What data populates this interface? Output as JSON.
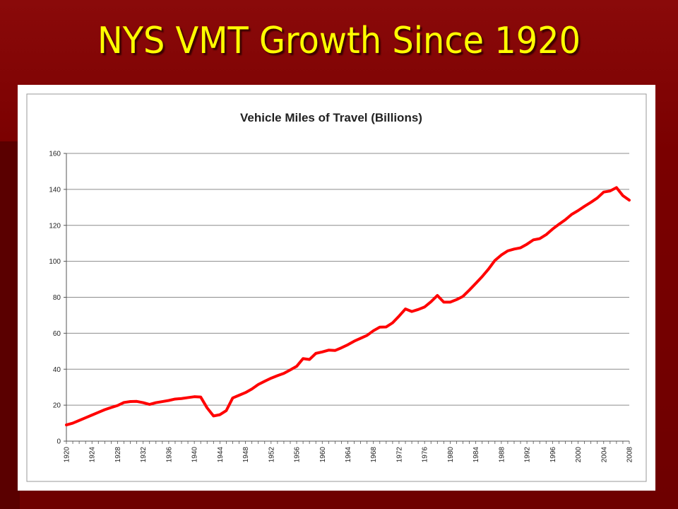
{
  "slide": {
    "title": "NYS VMT Growth Since 1920",
    "title_color": "#ffff00",
    "background_color": "#7a0000"
  },
  "chart_data": {
    "type": "line",
    "title": "Vehicle Miles of Travel (Billions)",
    "xlabel": "",
    "ylabel": "",
    "ylim": [
      0,
      160
    ],
    "yticks": [
      0,
      20,
      40,
      60,
      80,
      100,
      120,
      140,
      160
    ],
    "xlim": [
      1920,
      2008
    ],
    "xticks": [
      1920,
      1924,
      1928,
      1932,
      1936,
      1940,
      1944,
      1948,
      1952,
      1956,
      1960,
      1964,
      1968,
      1972,
      1976,
      1980,
      1984,
      1988,
      1992,
      1996,
      2000,
      2004,
      2008
    ],
    "grid": "horizontal",
    "legend": "none",
    "line_color": "#ff0000",
    "series": [
      {
        "x": [
          1920,
          1921,
          1922,
          1923,
          1924,
          1925,
          1926,
          1927,
          1928,
          1929,
          1930,
          1931,
          1932,
          1933,
          1934,
          1935,
          1936,
          1937,
          1938,
          1939,
          1940,
          1941,
          1942,
          1943,
          1944,
          1945,
          1946,
          1947,
          1948,
          1949,
          1950,
          1951,
          1952,
          1953,
          1954,
          1955,
          1956,
          1957,
          1958,
          1959,
          1960,
          1961,
          1962,
          1963,
          1964,
          1965,
          1966,
          1967,
          1968,
          1969,
          1970,
          1971,
          1972,
          1973,
          1974,
          1975,
          1976,
          1977,
          1978,
          1979,
          1980,
          1981,
          1982,
          1983,
          1984,
          1985,
          1986,
          1987,
          1988,
          1989,
          1990,
          1991,
          1992,
          1993,
          1994,
          1995,
          1996,
          1997,
          1998,
          1999,
          2000,
          2001,
          2002,
          2003,
          2004,
          2005,
          2006,
          2007,
          2008
        ],
        "values": [
          9,
          10,
          11.5,
          13,
          14.5,
          16,
          17.5,
          18.7,
          19.8,
          21.5,
          22,
          22.1,
          21.4,
          20.4,
          21.4,
          22,
          22.6,
          23.4,
          23.7,
          24.2,
          24.7,
          24.5,
          18.5,
          14,
          14.7,
          17,
          24,
          25.5,
          27,
          29,
          31.5,
          33.3,
          35,
          36.4,
          37.7,
          39.6,
          41.6,
          45.9,
          45.4,
          48.8,
          49.6,
          50.6,
          50.4,
          51.9,
          53.6,
          55.6,
          57.2,
          58.8,
          61.4,
          63.4,
          63.5,
          65.8,
          69.5,
          73.5,
          72.1,
          73.2,
          74.6,
          77.5,
          81,
          77.3,
          77.3,
          78.7,
          80.5,
          84,
          87.7,
          91.5,
          95.7,
          100.5,
          103.5,
          105.8,
          106.8,
          107.5,
          109.5,
          111.9,
          112.6,
          114.8,
          117.9,
          120.6,
          123.1,
          126.1,
          128.2,
          130.6,
          132.8,
          135.2,
          138.5,
          139.1,
          141,
          136.5,
          134
        ]
      }
    ]
  }
}
